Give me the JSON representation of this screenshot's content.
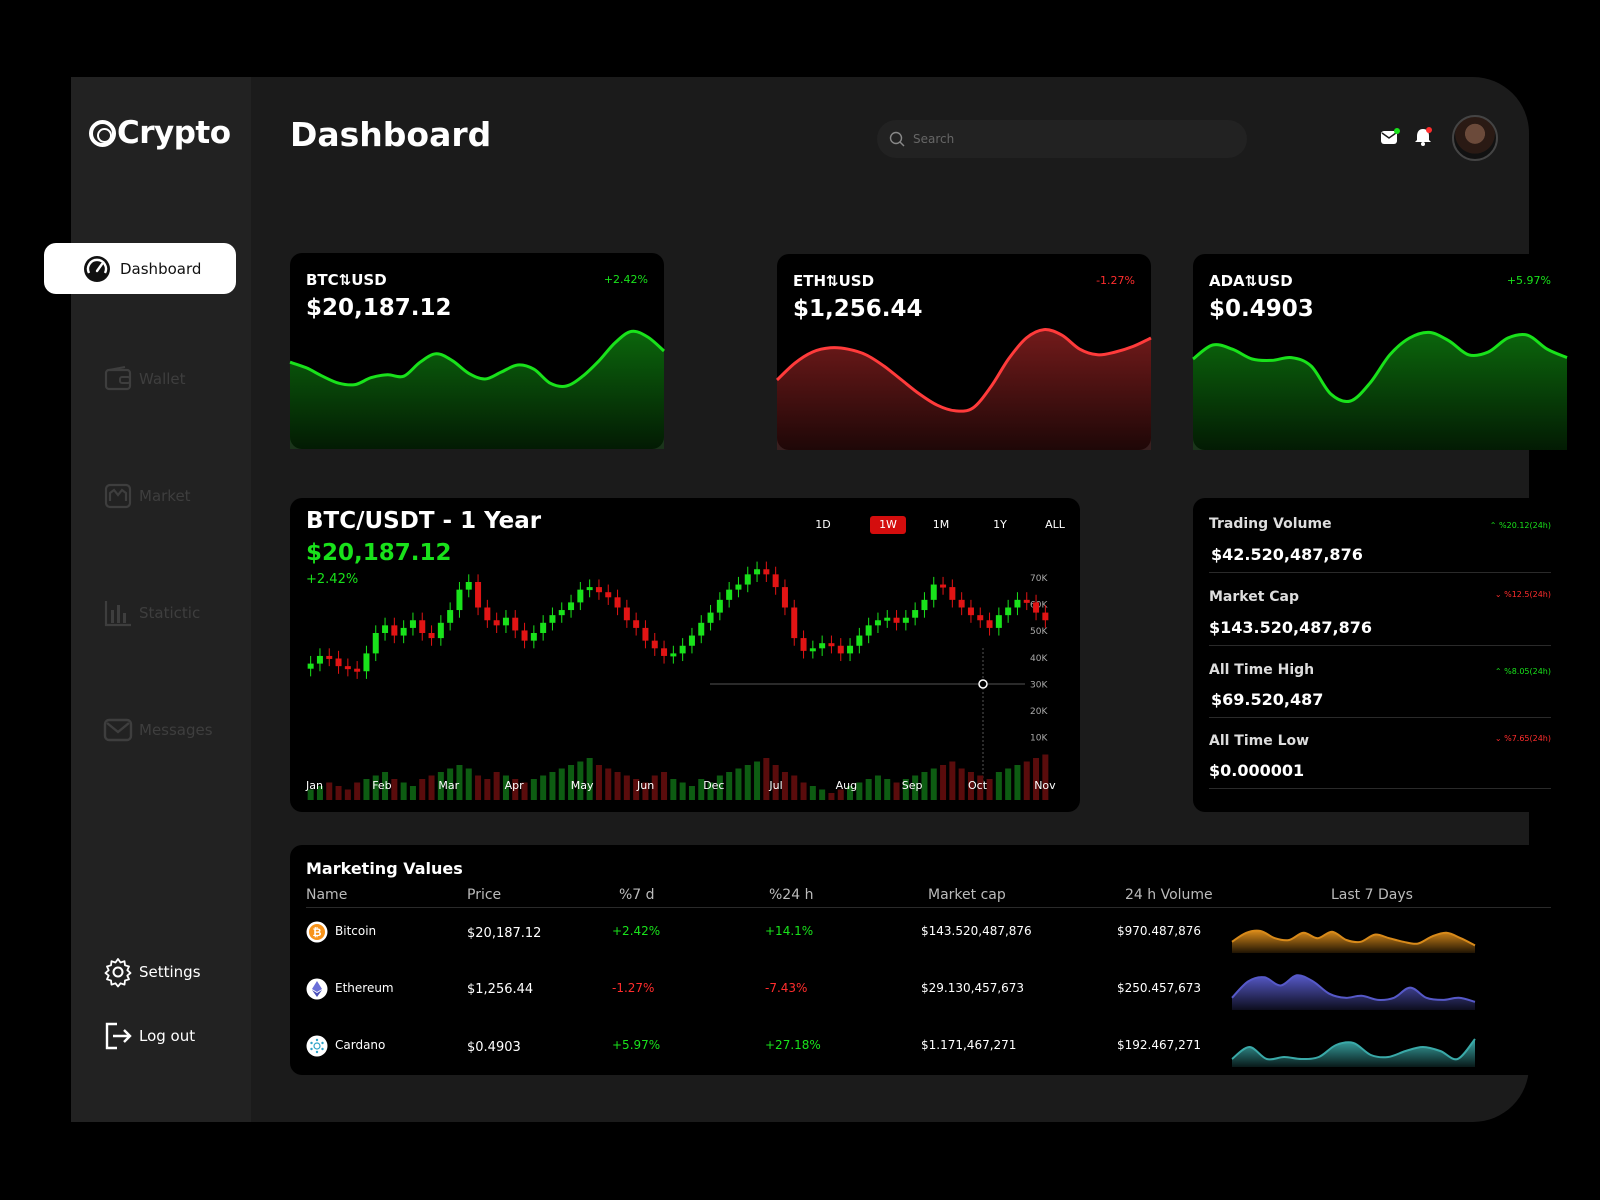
{
  "app": {
    "brand": "Crypto",
    "page_title": "Dashboard"
  },
  "search": {
    "placeholder": "Search"
  },
  "sidebar": {
    "items": [
      {
        "label": "Dashboard",
        "icon": "gauge-icon",
        "active": true
      },
      {
        "label": "Wallet",
        "icon": "wallet-icon"
      },
      {
        "label": "Market",
        "icon": "market-icon"
      },
      {
        "label": "Statictic",
        "icon": "bar-chart-icon"
      },
      {
        "label": "Messages",
        "icon": "mail-icon"
      }
    ],
    "settings_label": "Settings",
    "logout_label": "Log out"
  },
  "tickers": [
    {
      "pair": "BTC⇅USD",
      "price": "$20,187.12",
      "change": "+2.42%",
      "trend": "up",
      "color": "#19e21b",
      "spark": [
        62,
        58,
        52,
        47,
        46,
        51,
        53,
        52,
        62,
        68,
        63,
        54,
        50,
        55,
        60,
        57,
        47,
        45,
        52,
        63,
        76,
        84,
        80,
        70
      ]
    },
    {
      "pair": "ETH⇅USD",
      "price": "$1,256.44",
      "change": "-1.27%",
      "trend": "down",
      "color": "#ff3b3b",
      "spark": [
        50,
        62,
        70,
        73,
        72,
        68,
        60,
        50,
        40,
        32,
        28,
        30,
        45,
        65,
        80,
        86,
        82,
        72,
        68,
        70,
        74,
        80
      ]
    },
    {
      "pair": "ADA⇅USD",
      "price": "$0.4903",
      "change": "+5.97%",
      "trend": "up",
      "color": "#19e21b",
      "spark": [
        65,
        75,
        72,
        65,
        64,
        66,
        60,
        40,
        35,
        48,
        68,
        80,
        84,
        78,
        68,
        70,
        80,
        82,
        72,
        66
      ]
    }
  ],
  "main_chart": {
    "title": "BTC/USDT - 1 Year",
    "price": "$20,187.12",
    "change": "+2.42%",
    "timeframes": [
      "1D",
      "1W",
      "1M",
      "1Y",
      "ALL"
    ],
    "active_timeframe": "1W"
  },
  "chart_data": {
    "type": "candlestick",
    "title": "BTC/USDT - 1 Year",
    "x_labels": [
      "Jan",
      "Feb",
      "Mar",
      "Apr",
      "May",
      "Jun",
      "Dec",
      "Jul",
      "Aug",
      "Sep",
      "Oct",
      "Nov"
    ],
    "y_labels": [
      "70K",
      "60K",
      "50K",
      "40K",
      "30K",
      "20K",
      "10K"
    ],
    "ylim": [
      0,
      80000
    ],
    "closes": [
      38,
      41,
      40,
      37,
      36,
      35,
      42,
      50,
      53,
      49,
      52,
      55,
      50,
      48,
      54,
      59,
      67,
      70,
      60,
      55,
      53,
      56,
      51,
      47,
      50,
      54,
      57,
      59,
      62,
      67,
      68,
      66,
      64,
      60,
      55,
      52,
      47,
      44,
      41,
      42,
      45,
      49,
      54,
      58,
      63,
      67,
      69,
      73,
      75,
      73,
      68,
      60,
      48,
      43,
      44,
      46,
      45,
      42,
      45,
      49,
      53,
      55,
      56,
      54,
      56,
      59,
      63,
      69,
      68,
      63,
      60,
      57,
      55,
      52,
      57,
      60,
      63,
      62,
      58,
      55
    ],
    "volumes": [
      3,
      4,
      5,
      4,
      3,
      5,
      6,
      7,
      8,
      6,
      5,
      4,
      6,
      7,
      8,
      9,
      10,
      9,
      7,
      6,
      8,
      7,
      6,
      5,
      6,
      7,
      8,
      9,
      10,
      11,
      12,
      10,
      9,
      8,
      7,
      6,
      5,
      7,
      8,
      6,
      5,
      4,
      6,
      5,
      7,
      8,
      9,
      10,
      11,
      12,
      10,
      8,
      7,
      5,
      4,
      3,
      2,
      3,
      4,
      5,
      6,
      7,
      6,
      5,
      6,
      7,
      8,
      9,
      10,
      11,
      9,
      8,
      7,
      6,
      8,
      9,
      10,
      11,
      12,
      13
    ]
  },
  "stats": [
    {
      "label": "Trading Volume",
      "value": "$42.520,487,876",
      "change": "%20.12(24h)",
      "trend": "up"
    },
    {
      "label": "Market Cap",
      "value": "$143.520,487,876",
      "change": "%12.5(24h)",
      "trend": "down"
    },
    {
      "label": "All Time High",
      "value": "$69.520,487",
      "change": "%8.05(24h)",
      "trend": "up"
    },
    {
      "label": "All Time Low",
      "value": "$0.000001",
      "change": "%7.65(24h)",
      "trend": "down"
    }
  ],
  "table": {
    "title": "Marketing Values",
    "headers": [
      "Name",
      "Price",
      "%7 d",
      "%24 h",
      "Market cap",
      "24 h Volume",
      "Last 7 Days"
    ],
    "rows": [
      {
        "name": "Bitcoin",
        "icon": "bitcoin-icon",
        "icon_color": "#f7931a",
        "price": "$20,187.12",
        "d7": "+2.42%",
        "h24": "+14.1%",
        "cap": "$143.520,487,876",
        "vol": "$970.487,876",
        "spark_color": "#d88a1a",
        "spark": [
          20,
          45,
          50,
          30,
          25,
          45,
          30,
          48,
          25,
          20,
          40,
          30,
          20,
          15,
          35,
          45,
          30,
          10
        ]
      },
      {
        "name": "Ethereum",
        "icon": "ethereum-icon",
        "icon_color": "#6a6fd8",
        "price": "$1,256.44",
        "d7": "-1.27%",
        "h24": "-7.43%",
        "cap": "$29.130,457,673",
        "vol": "$250.457,673",
        "spark_color": "#5659c8",
        "spark": [
          20,
          60,
          70,
          50,
          75,
          60,
          30,
          20,
          25,
          15,
          20,
          45,
          20,
          15,
          20,
          10
        ]
      },
      {
        "name": "Cardano",
        "icon": "cardano-icon",
        "icon_color": "#2fa4c8",
        "price": "$0.4903",
        "d7": "+5.97%",
        "h24": "+27.18%",
        "cap": "$1.171,467,271",
        "vol": "$192.467,271",
        "spark_color": "#3aa9a8",
        "spark": [
          10,
          40,
          10,
          15,
          10,
          15,
          45,
          50,
          20,
          15,
          30,
          40,
          30,
          10,
          60
        ]
      }
    ]
  }
}
